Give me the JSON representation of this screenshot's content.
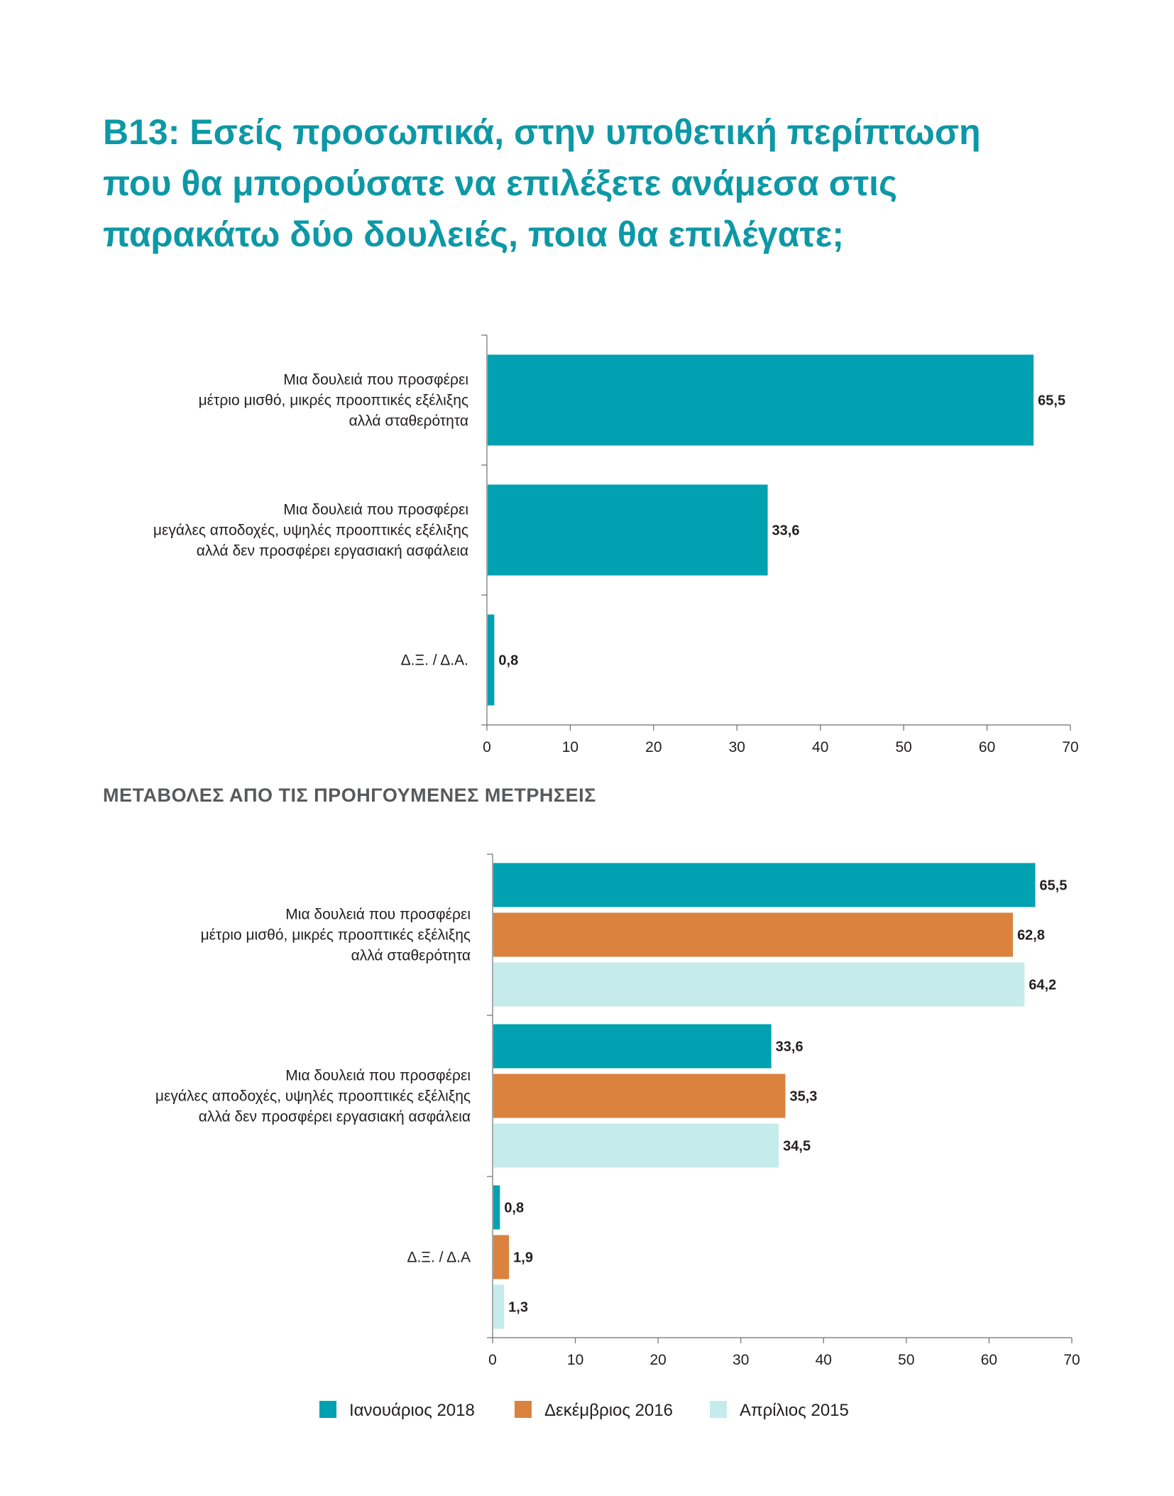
{
  "page": {
    "title": "B13: Εσείς προσωπικά, στην υποθετική περίπτωση που θα μπορούσατε να επιλέξετε ανάμεσα στις παρακάτω δύο δουλειές, ποια θα επιλέγατε;",
    "subtitle": "ΜΕΤΑΒΟΛΕΣ ΑΠΟ ΤΙΣ ΠΡΟΗΓΟΥΜΕΝΕΣ ΜΕΤΡΗΣΕΙΣ"
  },
  "chart_data": [
    {
      "type": "bar",
      "orientation": "horizontal",
      "categories": [
        [
          "Μια δουλειά που προσφέρει",
          "μέτριο μισθό, μικρές προοπτικές εξέλιξης",
          "αλλά σταθερότητα"
        ],
        [
          "Μια δουλειά που προσφέρει",
          "μεγάλες αποδοχές, υψηλές προοπτικές εξέλιξης",
          "αλλά δεν προσφέρει εργασιακή ασφάλεια"
        ],
        [
          "Δ.Ξ. / Δ.Α."
        ]
      ],
      "series": [
        {
          "values": [
            65.5,
            33.6,
            0.8
          ],
          "labels": [
            "65,5",
            "33,6",
            "0,8"
          ],
          "color": "#00a1b0"
        }
      ],
      "xlim": [
        0,
        70
      ],
      "xticks": [
        "0",
        "10",
        "20",
        "30",
        "40",
        "50",
        "60",
        "70"
      ],
      "grid": false
    },
    {
      "type": "bar",
      "orientation": "horizontal",
      "categories": [
        [
          "Μια δουλειά που προσφέρει",
          "μέτριο μισθό, μικρές προοπτικές εξέλιξης",
          "αλλά σταθερότητα"
        ],
        [
          "Μια δουλειά που προσφέρει",
          "μεγάλες αποδοχές, υψηλές προοπτικές εξέλιξης",
          "αλλά δεν προσφέρει εργασιακή ασφάλεια"
        ],
        [
          "Δ.Ξ. / Δ.Α"
        ]
      ],
      "series": [
        {
          "name": "Ιανουάριος 2018",
          "values": [
            65.5,
            33.6,
            0.8
          ],
          "labels": [
            "65,5",
            "33,6",
            "0,8"
          ],
          "color": "#00a1b0"
        },
        {
          "name": "Δεκέμβριος 2016",
          "values": [
            62.8,
            35.3,
            1.9
          ],
          "labels": [
            "62,8",
            "35,3",
            "1,9"
          ],
          "color": "#db823e"
        },
        {
          "name": "Απρίλιος 2015",
          "values": [
            64.2,
            34.5,
            1.3
          ],
          "labels": [
            "64,2",
            "34,5",
            "1,3"
          ],
          "color": "#c5ebeb"
        }
      ],
      "xlim": [
        0,
        70
      ],
      "xticks": [
        "0",
        "10",
        "20",
        "30",
        "40",
        "50",
        "60",
        "70"
      ],
      "legend": "bottom",
      "grid": false
    }
  ]
}
